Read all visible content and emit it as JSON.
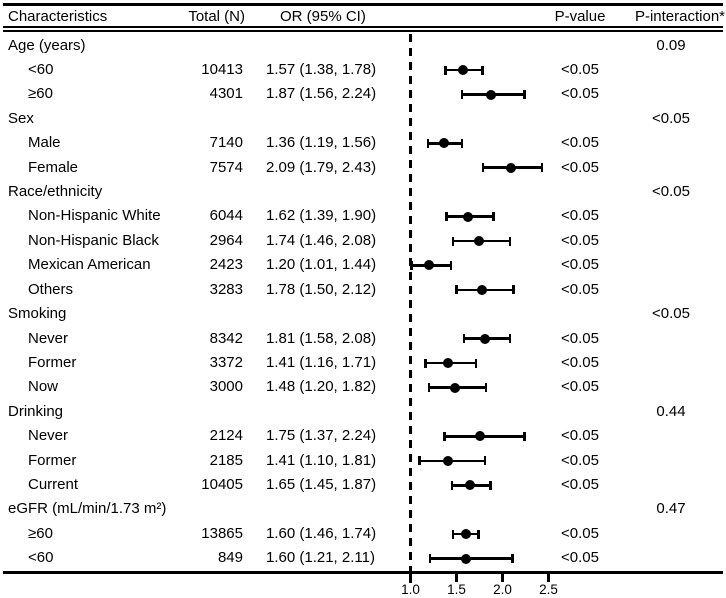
{
  "header": {
    "characteristics": "Characteristics",
    "total": "Total (N)",
    "or_ci": "OR (95% CI)",
    "p_value": "P-value",
    "p_interaction": "P-interaction*"
  },
  "chart_data": {
    "type": "forest",
    "title": "",
    "xlabel": "",
    "x_axis": {
      "ticks": [
        1.0,
        1.5,
        2.0,
        2.5
      ],
      "tick_labels": [
        "1.0",
        "1.5",
        "2.0",
        "2.5"
      ],
      "reference_line": 1.0,
      "xlim": [
        0.95,
        3.4
      ]
    },
    "columns": [
      "Characteristics",
      "Total (N)",
      "OR (95% CI)",
      "P-value",
      "P-interaction*"
    ],
    "rows": [
      {
        "type": "group",
        "label": "Age (years)",
        "p_interaction": "0.09"
      },
      {
        "type": "item",
        "label": "<60",
        "n": "10413",
        "or_text": "1.57 (1.38, 1.78)",
        "or": 1.57,
        "lo": 1.38,
        "hi": 1.78,
        "p": "<0.05"
      },
      {
        "type": "item",
        "label": "≥60",
        "n": "4301",
        "or_text": "1.87 (1.56, 2.24)",
        "or": 1.87,
        "lo": 1.56,
        "hi": 2.24,
        "p": "<0.05"
      },
      {
        "type": "group",
        "label": "Sex",
        "p_interaction": "<0.05"
      },
      {
        "type": "item",
        "label": "Male",
        "n": "7140",
        "or_text": "1.36 (1.19, 1.56)",
        "or": 1.36,
        "lo": 1.19,
        "hi": 1.56,
        "p": "<0.05"
      },
      {
        "type": "item",
        "label": "Female",
        "n": "7574",
        "or_text": "2.09 (1.79, 2.43)",
        "or": 2.09,
        "lo": 1.79,
        "hi": 2.43,
        "p": "<0.05"
      },
      {
        "type": "group",
        "label": "Race/ethnicity",
        "p_interaction": "<0.05"
      },
      {
        "type": "item",
        "label": "Non-Hispanic White",
        "n": "6044",
        "or_text": "1.62 (1.39, 1.90)",
        "or": 1.62,
        "lo": 1.39,
        "hi": 1.9,
        "p": "<0.05"
      },
      {
        "type": "item",
        "label": "Non-Hispanic Black",
        "n": "2964",
        "or_text": "1.74 (1.46, 2.08)",
        "or": 1.74,
        "lo": 1.46,
        "hi": 2.08,
        "p": "<0.05"
      },
      {
        "type": "item",
        "label": "Mexican American",
        "n": "2423",
        "or_text": "1.20 (1.01, 1.44)",
        "or": 1.2,
        "lo": 1.01,
        "hi": 1.44,
        "p": "<0.05"
      },
      {
        "type": "item",
        "label": "Others",
        "n": "3283",
        "or_text": "1.78 (1.50, 2.12)",
        "or": 1.78,
        "lo": 1.5,
        "hi": 2.12,
        "p": "<0.05"
      },
      {
        "type": "group",
        "label": "Smoking",
        "p_interaction": "<0.05"
      },
      {
        "type": "item",
        "label": "Never",
        "n": "8342",
        "or_text": "1.81 (1.58, 2.08)",
        "or": 1.81,
        "lo": 1.58,
        "hi": 2.08,
        "p": "<0.05"
      },
      {
        "type": "item",
        "label": "Former",
        "n": "3372",
        "or_text": "1.41 (1.16, 1.71)",
        "or": 1.41,
        "lo": 1.16,
        "hi": 1.71,
        "p": "<0.05"
      },
      {
        "type": "item",
        "label": "Now",
        "n": "3000",
        "or_text": "1.48 (1.20, 1.82)",
        "or": 1.48,
        "lo": 1.2,
        "hi": 1.82,
        "p": "<0.05"
      },
      {
        "type": "group",
        "label": "Drinking",
        "p_interaction": "0.44"
      },
      {
        "type": "item",
        "label": "Never",
        "n": "2124",
        "or_text": "1.75 (1.37, 2.24)",
        "or": 1.75,
        "lo": 1.37,
        "hi": 2.24,
        "p": "<0.05"
      },
      {
        "type": "item",
        "label": "Former",
        "n": "2185",
        "or_text": "1.41 (1.10, 1.81)",
        "or": 1.41,
        "lo": 1.1,
        "hi": 1.81,
        "p": "<0.05"
      },
      {
        "type": "item",
        "label": "Current",
        "n": "10405",
        "or_text": "1.65 (1.45, 1.87)",
        "or": 1.65,
        "lo": 1.45,
        "hi": 1.87,
        "p": "<0.05"
      },
      {
        "type": "group",
        "label": "eGFR (mL/min/1.73 m²)",
        "p_interaction": "0.47"
      },
      {
        "type": "item",
        "label": "≥60",
        "n": "13865",
        "or_text": "1.60 (1.46, 1.74)",
        "or": 1.6,
        "lo": 1.46,
        "hi": 1.74,
        "p": "<0.05"
      },
      {
        "type": "item",
        "label": "<60",
        "n": "849",
        "or_text": "1.60 (1.21, 2.11)",
        "or": 1.6,
        "lo": 1.21,
        "hi": 2.11,
        "p": "<0.05"
      }
    ]
  }
}
